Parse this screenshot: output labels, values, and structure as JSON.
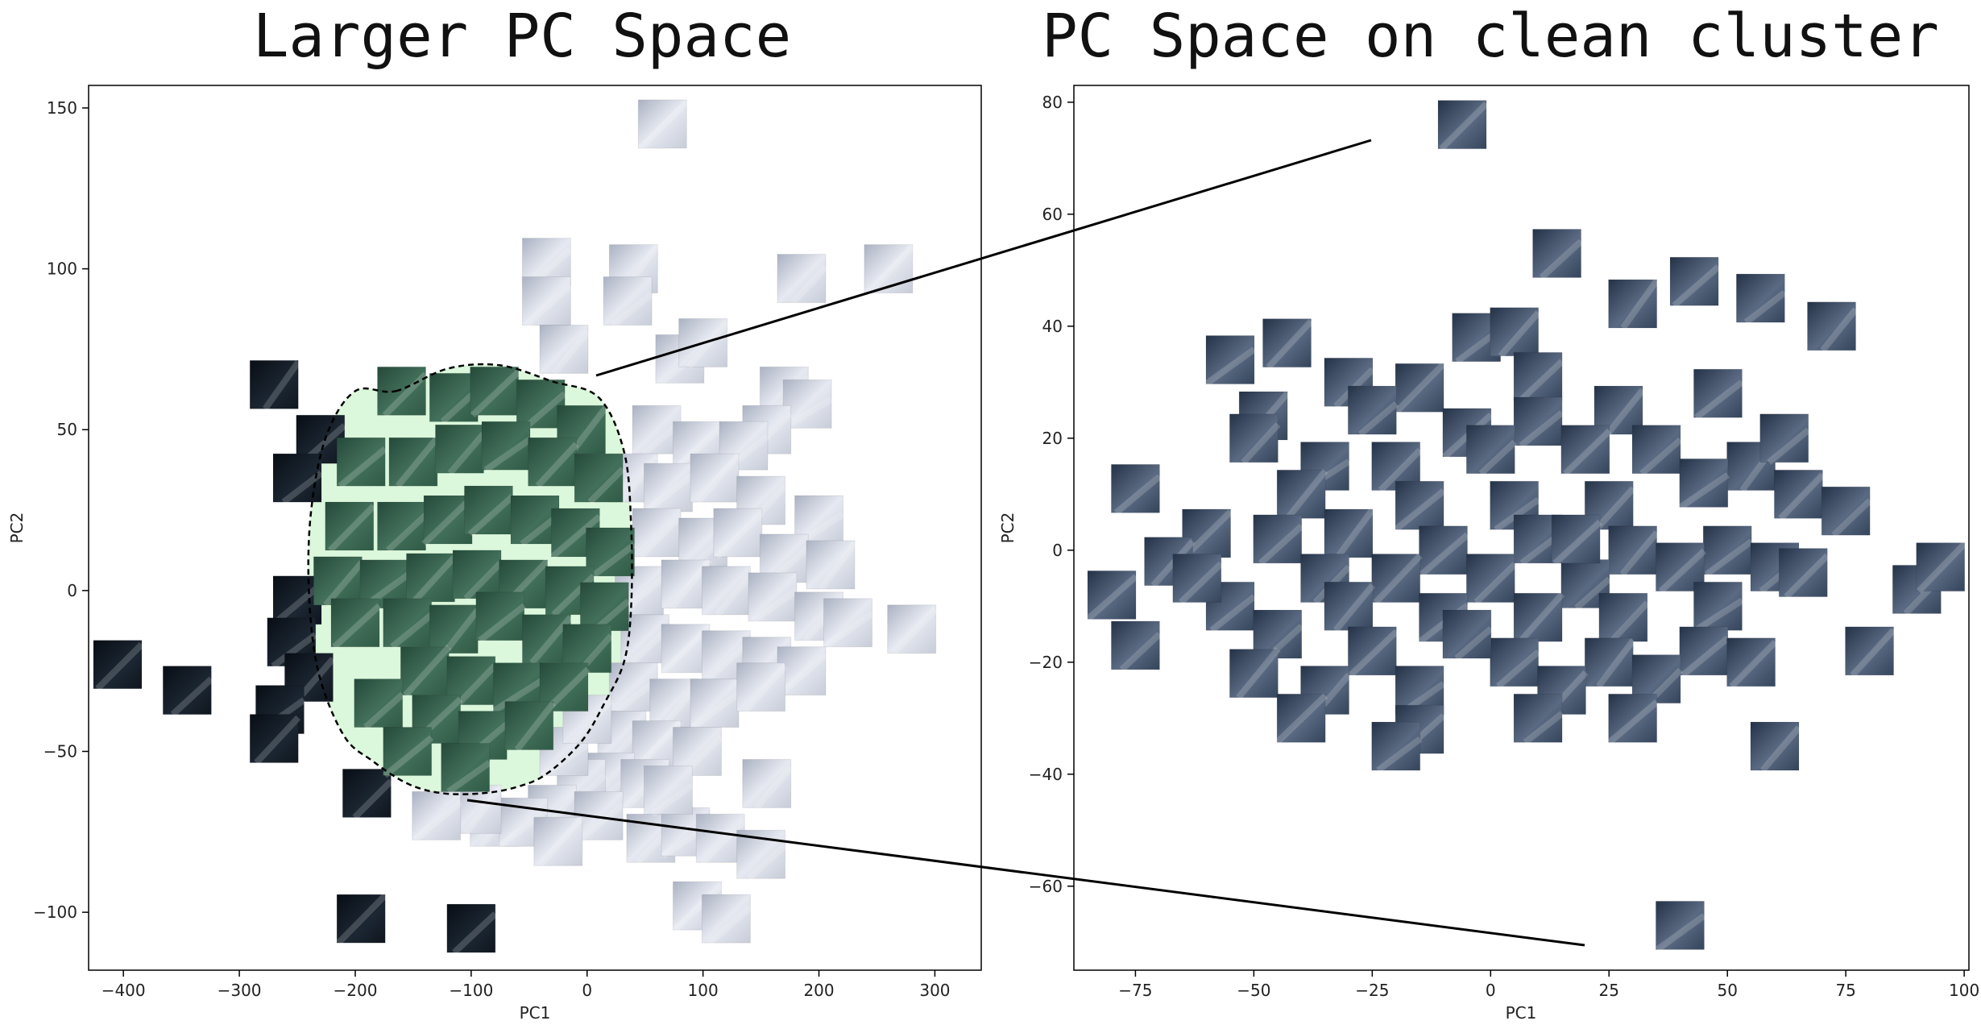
{
  "chart_data": [
    {
      "type": "scatter",
      "title": "Larger PC Space",
      "xlabel": "PC1",
      "ylabel": "PC2",
      "xlim": [
        -430,
        340
      ],
      "ylim": [
        -118,
        157
      ],
      "xticks": [
        -400,
        -300,
        -200,
        -100,
        0,
        100,
        200,
        300
      ],
      "yticks": [
        -100,
        -50,
        0,
        50,
        100,
        150
      ],
      "grid": false,
      "legend": "none",
      "marker": "image-thumbnail",
      "highlight_region": {
        "label": "",
        "fill": "#dcf8dc",
        "outline": "dashed",
        "points": [
          [
            -165,
            62
          ],
          [
            -120,
            69
          ],
          [
            -75,
            70
          ],
          [
            -30,
            65
          ],
          [
            10,
            60
          ],
          [
            32,
            43
          ],
          [
            38,
            20
          ],
          [
            38,
            -5
          ],
          [
            32,
            -22
          ],
          [
            15,
            -35
          ],
          [
            -5,
            -47
          ],
          [
            -35,
            -57
          ],
          [
            -60,
            -61
          ],
          [
            -90,
            -63
          ],
          [
            -125,
            -63
          ],
          [
            -155,
            -60
          ],
          [
            -185,
            -53
          ],
          [
            -210,
            -45
          ],
          [
            -232,
            -25
          ],
          [
            -240,
            0
          ],
          [
            -238,
            25
          ],
          [
            -225,
            48
          ],
          [
            -200,
            62
          ]
        ]
      },
      "points_dark": [
        [
          -405,
          -23
        ],
        [
          -345,
          -31
        ],
        [
          -270,
          64
        ],
        [
          -230,
          47
        ],
        [
          -250,
          35
        ],
        [
          -250,
          -3
        ],
        [
          -255,
          -16
        ],
        [
          -240,
          -27
        ],
        [
          -265,
          -37
        ],
        [
          -270,
          -46
        ],
        [
          -190,
          -63
        ],
        [
          -195,
          -102
        ],
        [
          -100,
          -105
        ]
      ],
      "points_inside": [
        [
          -160,
          62
        ],
        [
          -115,
          60
        ],
        [
          -80,
          62
        ],
        [
          -40,
          58
        ],
        [
          -5,
          50
        ],
        [
          -195,
          40
        ],
        [
          -150,
          40
        ],
        [
          -110,
          44
        ],
        [
          -70,
          45
        ],
        [
          -30,
          40
        ],
        [
          10,
          35
        ],
        [
          -205,
          20
        ],
        [
          -160,
          20
        ],
        [
          -120,
          22
        ],
        [
          -85,
          25
        ],
        [
          -45,
          22
        ],
        [
          -10,
          18
        ],
        [
          20,
          12
        ],
        [
          -215,
          3
        ],
        [
          -175,
          2
        ],
        [
          -135,
          4
        ],
        [
          -95,
          5
        ],
        [
          -55,
          2
        ],
        [
          -15,
          0
        ],
        [
          15,
          -5
        ],
        [
          -200,
          -10
        ],
        [
          -155,
          -10
        ],
        [
          -115,
          -12
        ],
        [
          -75,
          -8
        ],
        [
          -35,
          -15
        ],
        [
          0,
          -18
        ],
        [
          -140,
          -25
        ],
        [
          -100,
          -28
        ],
        [
          -60,
          -30
        ],
        [
          -20,
          -30
        ],
        [
          -180,
          -35
        ],
        [
          -130,
          -40
        ],
        [
          -90,
          -45
        ],
        [
          -50,
          -42
        ],
        [
          -155,
          -50
        ],
        [
          -105,
          -55
        ]
      ],
      "points_outside": [
        [
          65,
          145
        ],
        [
          -35,
          102
        ],
        [
          40,
          100
        ],
        [
          -35,
          90
        ],
        [
          35,
          90
        ],
        [
          -20,
          75
        ],
        [
          80,
          72
        ],
        [
          100,
          77
        ],
        [
          185,
          97
        ],
        [
          260,
          100
        ],
        [
          170,
          62
        ],
        [
          190,
          58
        ],
        [
          155,
          50
        ],
        [
          60,
          50
        ],
        [
          95,
          45
        ],
        [
          135,
          45
        ],
        [
          40,
          35
        ],
        [
          70,
          32
        ],
        [
          110,
          35
        ],
        [
          150,
          28
        ],
        [
          200,
          22
        ],
        [
          60,
          18
        ],
        [
          100,
          15
        ],
        [
          130,
          18
        ],
        [
          170,
          10
        ],
        [
          210,
          8
        ],
        [
          45,
          0
        ],
        [
          85,
          2
        ],
        [
          120,
          0
        ],
        [
          160,
          -2
        ],
        [
          200,
          -8
        ],
        [
          225,
          -10
        ],
        [
          280,
          -12
        ],
        [
          50,
          -15
        ],
        [
          85,
          -18
        ],
        [
          120,
          -20
        ],
        [
          155,
          -22
        ],
        [
          185,
          -25
        ],
        [
          40,
          -30
        ],
        [
          75,
          -35
        ],
        [
          110,
          -35
        ],
        [
          150,
          -30
        ],
        [
          30,
          -45
        ],
        [
          60,
          -48
        ],
        [
          95,
          -50
        ],
        [
          20,
          -58
        ],
        [
          50,
          -60
        ],
        [
          -5,
          -60
        ],
        [
          -30,
          -68
        ],
        [
          10,
          -70
        ],
        [
          -80,
          -72
        ],
        [
          -55,
          -72
        ],
        [
          -25,
          -78
        ],
        [
          55,
          -77
        ],
        [
          85,
          -75
        ],
        [
          115,
          -77
        ],
        [
          150,
          -82
        ],
        [
          95,
          -98
        ],
        [
          120,
          -102
        ],
        [
          -95,
          -68
        ],
        [
          -130,
          -70
        ],
        [
          70,
          -62
        ],
        [
          155,
          -60
        ],
        [
          -20,
          -50
        ],
        [
          0,
          -40
        ]
      ]
    },
    {
      "type": "scatter",
      "title": "PC Space on clean cluster",
      "xlabel": "PC1",
      "ylabel": "PC2",
      "xlim": [
        -88,
        101
      ],
      "ylim": [
        -75,
        83
      ],
      "xticks": [
        -75,
        -50,
        -25,
        0,
        25,
        50,
        75,
        100
      ],
      "yticks": [
        -60,
        -40,
        -20,
        0,
        20,
        40,
        60,
        80
      ],
      "grid": false,
      "legend": "none",
      "marker": "image-thumbnail",
      "points": [
        [
          -6,
          76
        ],
        [
          14,
          53
        ],
        [
          30,
          44
        ],
        [
          43,
          48
        ],
        [
          57,
          45
        ],
        [
          72,
          40
        ],
        [
          -3,
          38
        ],
        [
          5,
          39
        ],
        [
          -55,
          34
        ],
        [
          -43,
          37
        ],
        [
          -30,
          30
        ],
        [
          -15,
          29
        ],
        [
          10,
          31
        ],
        [
          -25,
          25
        ],
        [
          -5,
          21
        ],
        [
          10,
          23
        ],
        [
          27,
          25
        ],
        [
          48,
          28
        ],
        [
          -48,
          24
        ],
        [
          -50,
          20
        ],
        [
          -35,
          15
        ],
        [
          -20,
          15
        ],
        [
          0,
          18
        ],
        [
          20,
          18
        ],
        [
          35,
          18
        ],
        [
          55,
          15
        ],
        [
          -75,
          11
        ],
        [
          -40,
          10
        ],
        [
          -15,
          8
        ],
        [
          5,
          8
        ],
        [
          25,
          8
        ],
        [
          45,
          12
        ],
        [
          65,
          10
        ],
        [
          75,
          7
        ],
        [
          -60,
          3
        ],
        [
          -45,
          2
        ],
        [
          -30,
          3
        ],
        [
          -10,
          0
        ],
        [
          10,
          2
        ],
        [
          30,
          0
        ],
        [
          50,
          0
        ],
        [
          -68,
          -2
        ],
        [
          -35,
          -5
        ],
        [
          -20,
          -5
        ],
        [
          0,
          -5
        ],
        [
          20,
          -6
        ],
        [
          40,
          -3
        ],
        [
          60,
          -3
        ],
        [
          -80,
          -8
        ],
        [
          -55,
          -10
        ],
        [
          -30,
          -10
        ],
        [
          -10,
          -12
        ],
        [
          10,
          -12
        ],
        [
          28,
          -12
        ],
        [
          48,
          -10
        ],
        [
          66,
          -4
        ],
        [
          -45,
          -15
        ],
        [
          -25,
          -18
        ],
        [
          5,
          -20
        ],
        [
          25,
          -20
        ],
        [
          45,
          -18
        ],
        [
          -50,
          -22
        ],
        [
          -35,
          -25
        ],
        [
          -15,
          -25
        ],
        [
          15,
          -25
        ],
        [
          35,
          -23
        ],
        [
          55,
          -20
        ],
        [
          -75,
          -17
        ],
        [
          -40,
          -30
        ],
        [
          -15,
          -32
        ],
        [
          10,
          -30
        ],
        [
          30,
          -30
        ],
        [
          -20,
          -35
        ],
        [
          60,
          -35
        ],
        [
          40,
          -67
        ],
        [
          80,
          -18
        ],
        [
          90,
          -7
        ],
        [
          95,
          -3
        ],
        [
          -62,
          -5
        ],
        [
          -5,
          -15
        ],
        [
          18,
          2
        ],
        [
          62,
          20
        ]
      ]
    }
  ],
  "connectors": {
    "color": "#000000",
    "style": "solid"
  },
  "colors": {
    "dark_thumb": [
      "#080d14",
      "#1c2733",
      "#0f151d"
    ],
    "inside_thumb": [
      "#25493a",
      "#43705a",
      "#2f5a46"
    ],
    "outside_thumb": [
      "#c7ccd8",
      "#e6e9f1",
      "#aab1c1"
    ],
    "clean_thumb": [
      "#243247",
      "#5a6a82",
      "#34445b"
    ]
  }
}
